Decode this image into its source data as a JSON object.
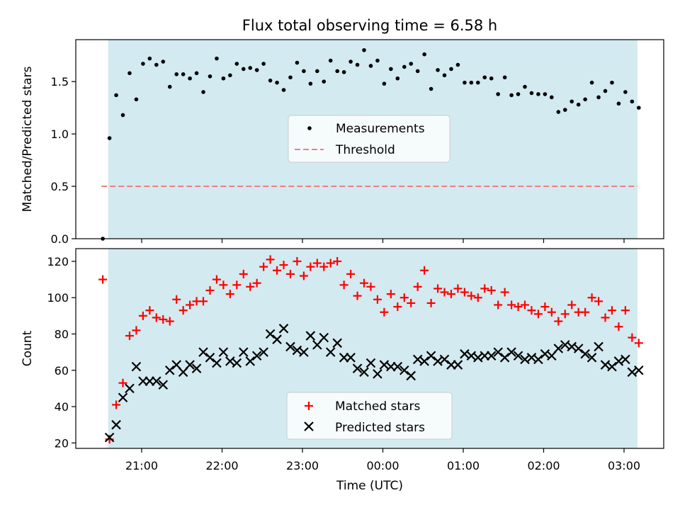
{
  "title": "Flux total observing time = 6.58 h",
  "xlabel": "Time (UTC)",
  "x_ticks": [
    "21:00",
    "22:00",
    "23:00",
    "00:00",
    "01:00",
    "02:00",
    "03:00"
  ],
  "colors": {
    "observing_span": "#d3eaf0",
    "measurement": "#000000",
    "threshold": "#f08080",
    "matched": "#ff0000",
    "predicted": "#000000"
  },
  "chart_data": [
    {
      "type": "scatter",
      "ylabel": "Matched/Predicted stars",
      "ylim": [
        0,
        1.9
      ],
      "y_ticks": [
        "0.0",
        "0.5",
        "1.0",
        "1.5"
      ],
      "legend_position": "center",
      "observing_span": [
        "20:35",
        "03:10"
      ],
      "threshold": {
        "name": "Threshold",
        "value": 0.5,
        "x_start": "20:30",
        "x_end": "03:10"
      },
      "series": [
        {
          "name": "Measurements",
          "points": [
            [
              "20:31",
              0.0
            ],
            [
              "20:36",
              0.96
            ],
            [
              "20:41",
              1.37
            ],
            [
              "20:46",
              1.18
            ],
            [
              "20:51",
              1.58
            ],
            [
              "20:56",
              1.33
            ],
            [
              "21:01",
              1.67
            ],
            [
              "21:06",
              1.72
            ],
            [
              "21:11",
              1.66
            ],
            [
              "21:16",
              1.69
            ],
            [
              "21:21",
              1.45
            ],
            [
              "21:26",
              1.57
            ],
            [
              "21:31",
              1.57
            ],
            [
              "21:36",
              1.53
            ],
            [
              "21:41",
              1.58
            ],
            [
              "21:46",
              1.4
            ],
            [
              "21:51",
              1.55
            ],
            [
              "21:56",
              1.72
            ],
            [
              "22:01",
              1.53
            ],
            [
              "22:06",
              1.56
            ],
            [
              "22:11",
              1.67
            ],
            [
              "22:16",
              1.62
            ],
            [
              "22:21",
              1.63
            ],
            [
              "22:26",
              1.61
            ],
            [
              "22:31",
              1.67
            ],
            [
              "22:36",
              1.51
            ],
            [
              "22:41",
              1.49
            ],
            [
              "22:46",
              1.42
            ],
            [
              "22:51",
              1.54
            ],
            [
              "22:56",
              1.68
            ],
            [
              "23:01",
              1.6
            ],
            [
              "23:06",
              1.48
            ],
            [
              "23:11",
              1.6
            ],
            [
              "23:16",
              1.5
            ],
            [
              "23:21",
              1.7
            ],
            [
              "23:26",
              1.6
            ],
            [
              "23:31",
              1.59
            ],
            [
              "23:36",
              1.69
            ],
            [
              "23:41",
              1.66
            ],
            [
              "23:46",
              1.8
            ],
            [
              "23:51",
              1.65
            ],
            [
              "23:56",
              1.7
            ],
            [
              "00:01",
              1.48
            ],
            [
              "00:06",
              1.62
            ],
            [
              "00:11",
              1.53
            ],
            [
              "00:16",
              1.64
            ],
            [
              "00:21",
              1.67
            ],
            [
              "00:26",
              1.6
            ],
            [
              "00:31",
              1.76
            ],
            [
              "00:36",
              1.43
            ],
            [
              "00:41",
              1.61
            ],
            [
              "00:46",
              1.56
            ],
            [
              "00:51",
              1.62
            ],
            [
              "00:56",
              1.66
            ],
            [
              "01:01",
              1.49
            ],
            [
              "01:06",
              1.49
            ],
            [
              "01:11",
              1.49
            ],
            [
              "01:16",
              1.54
            ],
            [
              "01:21",
              1.53
            ],
            [
              "01:26",
              1.38
            ],
            [
              "01:31",
              1.54
            ],
            [
              "01:36",
              1.37
            ],
            [
              "01:41",
              1.38
            ],
            [
              "01:46",
              1.45
            ],
            [
              "01:51",
              1.39
            ],
            [
              "01:56",
              1.38
            ],
            [
              "02:01",
              1.38
            ],
            [
              "02:06",
              1.35
            ],
            [
              "02:11",
              1.21
            ],
            [
              "02:16",
              1.23
            ],
            [
              "02:21",
              1.31
            ],
            [
              "02:26",
              1.28
            ],
            [
              "02:31",
              1.33
            ],
            [
              "02:36",
              1.49
            ],
            [
              "02:41",
              1.35
            ],
            [
              "02:46",
              1.41
            ],
            [
              "02:51",
              1.49
            ],
            [
              "02:56",
              1.29
            ],
            [
              "03:01",
              1.4
            ],
            [
              "03:06",
              1.31
            ],
            [
              "03:11",
              1.25
            ]
          ]
        }
      ]
    },
    {
      "type": "scatter",
      "ylabel": "Count",
      "ylim": [
        17,
        127
      ],
      "y_ticks": [
        "20",
        "40",
        "60",
        "80",
        "100",
        "120"
      ],
      "legend_position": "lower center",
      "observing_span": [
        "20:35",
        "03:10"
      ],
      "series": [
        {
          "name": "Matched stars",
          "marker": "plus",
          "points": [
            [
              "20:31",
              110
            ],
            [
              "20:36",
              22
            ],
            [
              "20:41",
              41
            ],
            [
              "20:46",
              53
            ],
            [
              "20:51",
              79
            ],
            [
              "20:56",
              82
            ],
            [
              "21:01",
              90
            ],
            [
              "21:06",
              93
            ],
            [
              "21:11",
              89
            ],
            [
              "21:16",
              88
            ],
            [
              "21:21",
              87
            ],
            [
              "21:26",
              99
            ],
            [
              "21:31",
              93
            ],
            [
              "21:36",
              96
            ],
            [
              "21:41",
              98
            ],
            [
              "21:46",
              98
            ],
            [
              "21:51",
              104
            ],
            [
              "21:56",
              110
            ],
            [
              "22:01",
              107
            ],
            [
              "22:06",
              102
            ],
            [
              "22:11",
              107
            ],
            [
              "22:16",
              113
            ],
            [
              "22:21",
              106
            ],
            [
              "22:26",
              108
            ],
            [
              "22:31",
              117
            ],
            [
              "22:36",
              121
            ],
            [
              "22:41",
              115
            ],
            [
              "22:46",
              118
            ],
            [
              "22:51",
              113
            ],
            [
              "22:56",
              120
            ],
            [
              "23:01",
              112
            ],
            [
              "23:06",
              117
            ],
            [
              "23:11",
              119
            ],
            [
              "23:16",
              117
            ],
            [
              "23:21",
              119
            ],
            [
              "23:26",
              120
            ],
            [
              "23:31",
              107
            ],
            [
              "23:36",
              113
            ],
            [
              "23:41",
              101
            ],
            [
              "23:46",
              108
            ],
            [
              "23:51",
              106
            ],
            [
              "23:56",
              99
            ],
            [
              "00:01",
              92
            ],
            [
              "00:06",
              102
            ],
            [
              "00:11",
              95
            ],
            [
              "00:16",
              100
            ],
            [
              "00:21",
              97
            ],
            [
              "00:26",
              106
            ],
            [
              "00:31",
              115
            ],
            [
              "00:36",
              97
            ],
            [
              "00:41",
              105
            ],
            [
              "00:46",
              103
            ],
            [
              "00:51",
              102
            ],
            [
              "00:56",
              105
            ],
            [
              "01:01",
              103
            ],
            [
              "01:06",
              101
            ],
            [
              "01:11",
              100
            ],
            [
              "01:16",
              105
            ],
            [
              "01:21",
              104
            ],
            [
              "01:26",
              96
            ],
            [
              "01:31",
              103
            ],
            [
              "01:36",
              96
            ],
            [
              "01:41",
              95
            ],
            [
              "01:46",
              96
            ],
            [
              "01:51",
              93
            ],
            [
              "01:56",
              91
            ],
            [
              "02:01",
              95
            ],
            [
              "02:06",
              92
            ],
            [
              "02:11",
              87
            ],
            [
              "02:16",
              91
            ],
            [
              "02:21",
              96
            ],
            [
              "02:26",
              92
            ],
            [
              "02:31",
              92
            ],
            [
              "02:36",
              100
            ],
            [
              "02:41",
              98
            ],
            [
              "02:46",
              89
            ],
            [
              "02:51",
              93
            ],
            [
              "02:56",
              84
            ],
            [
              "03:01",
              93
            ],
            [
              "03:06",
              78
            ],
            [
              "03:11",
              75
            ]
          ]
        },
        {
          "name": "Predicted stars",
          "marker": "x",
          "points": [
            [
              "20:36",
              23
            ],
            [
              "20:41",
              30
            ],
            [
              "20:46",
              45
            ],
            [
              "20:51",
              50
            ],
            [
              "20:56",
              62
            ],
            [
              "21:01",
              54
            ],
            [
              "21:06",
              54
            ],
            [
              "21:11",
              54
            ],
            [
              "21:16",
              52
            ],
            [
              "21:21",
              60
            ],
            [
              "21:26",
              63
            ],
            [
              "21:31",
              59
            ],
            [
              "21:36",
              63
            ],
            [
              "21:41",
              61
            ],
            [
              "21:46",
              70
            ],
            [
              "21:51",
              67
            ],
            [
              "21:56",
              64
            ],
            [
              "22:01",
              70
            ],
            [
              "22:06",
              65
            ],
            [
              "22:11",
              64
            ],
            [
              "22:16",
              70
            ],
            [
              "22:21",
              65
            ],
            [
              "22:26",
              68
            ],
            [
              "22:31",
              70
            ],
            [
              "22:36",
              80
            ],
            [
              "22:41",
              77
            ],
            [
              "22:46",
              83
            ],
            [
              "22:51",
              73
            ],
            [
              "22:56",
              71
            ],
            [
              "23:01",
              70
            ],
            [
              "23:06",
              79
            ],
            [
              "23:11",
              74
            ],
            [
              "23:16",
              78
            ],
            [
              "23:21",
              70
            ],
            [
              "23:26",
              75
            ],
            [
              "23:31",
              67
            ],
            [
              "23:36",
              67
            ],
            [
              "23:41",
              61
            ],
            [
              "23:46",
              59
            ],
            [
              "23:51",
              64
            ],
            [
              "23:56",
              58
            ],
            [
              "00:01",
              63
            ],
            [
              "00:06",
              62
            ],
            [
              "00:11",
              62
            ],
            [
              "00:16",
              60
            ],
            [
              "00:21",
              57
            ],
            [
              "00:26",
              66
            ],
            [
              "00:31",
              65
            ],
            [
              "00:36",
              68
            ],
            [
              "00:41",
              65
            ],
            [
              "00:46",
              66
            ],
            [
              "00:51",
              63
            ],
            [
              "00:56",
              63
            ],
            [
              "01:01",
              69
            ],
            [
              "01:06",
              68
            ],
            [
              "01:11",
              67
            ],
            [
              "01:16",
              68
            ],
            [
              "01:21",
              68
            ],
            [
              "01:26",
              70
            ],
            [
              "01:31",
              67
            ],
            [
              "01:36",
              70
            ],
            [
              "01:41",
              68
            ],
            [
              "01:46",
              66
            ],
            [
              "01:51",
              67
            ],
            [
              "01:56",
              66
            ],
            [
              "02:01",
              69
            ],
            [
              "02:06",
              68
            ],
            [
              "02:11",
              72
            ],
            [
              "02:16",
              74
            ],
            [
              "02:21",
              73
            ],
            [
              "02:26",
              72
            ],
            [
              "02:31",
              69
            ],
            [
              "02:36",
              67
            ],
            [
              "02:41",
              73
            ],
            [
              "02:46",
              63
            ],
            [
              "02:51",
              62
            ],
            [
              "02:56",
              65
            ],
            [
              "03:01",
              66
            ],
            [
              "03:06",
              59
            ],
            [
              "03:11",
              60
            ]
          ]
        }
      ]
    }
  ]
}
